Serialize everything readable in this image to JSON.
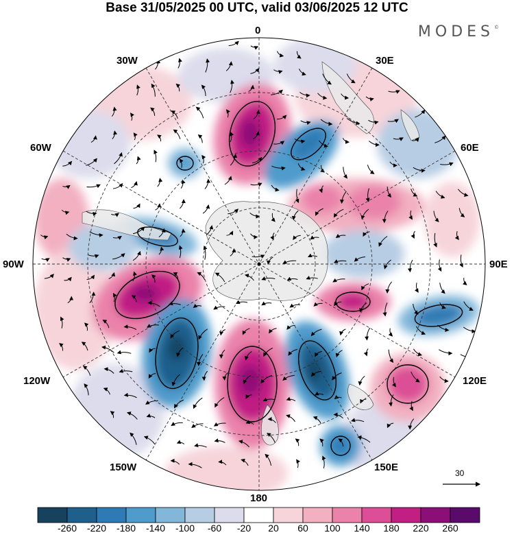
{
  "title": "Base 31/05/2025 00 UTC, valid 03/06/2025 12 UTC",
  "brand": "MODES",
  "brand_mark": "©",
  "map": {
    "projection": "south-polar-stereographic",
    "longitude_labels": {
      "top": "0",
      "top_right": "30E",
      "right_upper": "60E",
      "right": "90E",
      "right_lower": "120E",
      "bottom_right": "150E",
      "bottom": "180",
      "bottom_left": "150W",
      "left_lower": "120W",
      "left": "90W",
      "left_upper": "60W",
      "top_left": "30W"
    }
  },
  "wind_scale": {
    "value": "30"
  },
  "colorbar": {
    "ticks": [
      "-260",
      "-220",
      "-180",
      "-140",
      "-100",
      "-60",
      "-20",
      "20",
      "60",
      "100",
      "140",
      "180",
      "220",
      "260"
    ],
    "colors": [
      "#17425e",
      "#1f5f8c",
      "#2e7ab4",
      "#4f9bcc",
      "#82b7da",
      "#b7cde4",
      "#dcdcec",
      "#ffffff",
      "#f6d4da",
      "#f2b0c1",
      "#ea82aa",
      "#dc4f97",
      "#c11f84",
      "#8c0f77",
      "#5a0a6a"
    ]
  },
  "colors": {
    "land": "#e9e9e9",
    "grid": "#333333"
  }
}
